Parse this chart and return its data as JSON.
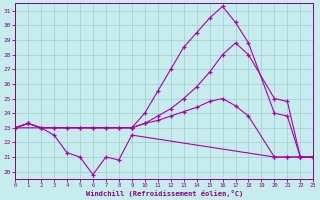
{
  "xlabel": "Windchill (Refroidissement éolien,°C)",
  "xlim": [
    0,
    23
  ],
  "ylim": [
    19.5,
    31.5
  ],
  "yticks": [
    20,
    21,
    22,
    23,
    24,
    25,
    26,
    27,
    28,
    29,
    30,
    31
  ],
  "xticks": [
    0,
    1,
    2,
    3,
    4,
    5,
    6,
    7,
    8,
    9,
    10,
    11,
    12,
    13,
    14,
    15,
    16,
    17,
    18,
    19,
    20,
    21,
    22,
    23
  ],
  "bg_color": "#c6ecee",
  "grid_color": "#a0cccc",
  "line_color": "#aa00aa",
  "tick_color": "#880088",
  "series": [
    {
      "name": "line1_min",
      "x": [
        0,
        1,
        2,
        3,
        4,
        5,
        6,
        7,
        8,
        9,
        20,
        21,
        22,
        23
      ],
      "y": [
        23.0,
        23.3,
        23.0,
        22.5,
        21.3,
        21.0,
        19.8,
        21.0,
        20.8,
        22.5,
        21.0,
        21.0,
        21.0,
        21.0
      ]
    },
    {
      "name": "line2_max",
      "x": [
        0,
        1,
        2,
        3,
        4,
        5,
        6,
        7,
        8,
        9,
        10,
        11,
        12,
        13,
        14,
        15,
        16,
        17,
        18,
        20,
        21,
        22,
        23
      ],
      "y": [
        23.0,
        23.3,
        23.0,
        23.0,
        23.0,
        23.0,
        23.0,
        23.0,
        23.0,
        23.0,
        24.0,
        25.5,
        27.0,
        28.5,
        29.5,
        30.5,
        31.3,
        30.2,
        28.8,
        24.0,
        23.8,
        21.0,
        21.0
      ]
    },
    {
      "name": "line3_upper",
      "x": [
        0,
        9,
        10,
        11,
        12,
        13,
        14,
        15,
        16,
        17,
        18,
        20,
        21,
        22,
        23
      ],
      "y": [
        23.0,
        23.0,
        23.3,
        23.8,
        24.3,
        25.0,
        25.8,
        26.8,
        28.0,
        28.8,
        28.0,
        25.0,
        24.8,
        21.0,
        21.0
      ]
    },
    {
      "name": "line4_avg",
      "x": [
        0,
        1,
        2,
        3,
        4,
        5,
        6,
        7,
        8,
        9,
        10,
        11,
        12,
        13,
        14,
        15,
        16,
        17,
        18,
        20,
        21,
        22,
        23
      ],
      "y": [
        23.0,
        23.3,
        23.0,
        23.0,
        23.0,
        23.0,
        23.0,
        23.0,
        23.0,
        23.0,
        23.3,
        23.5,
        23.8,
        24.1,
        24.4,
        24.8,
        25.0,
        24.5,
        23.8,
        21.0,
        21.0,
        21.0,
        21.0
      ]
    }
  ]
}
